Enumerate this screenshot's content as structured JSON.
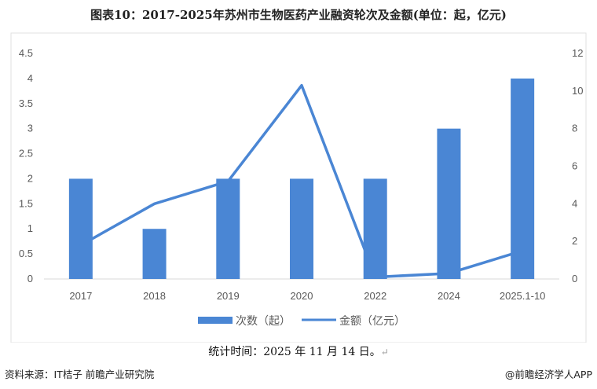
{
  "title": "图表10：2017-2025年苏州市生物医药产业融资轮次及金额(单位：起，亿元)",
  "chart_data": {
    "type": "bar",
    "categories": [
      "2017",
      "2018",
      "2019",
      "2020",
      "2022",
      "2024",
      "2025.1-10"
    ],
    "series": [
      {
        "name": "次数（起）",
        "type": "bar",
        "axis": "left",
        "color": "#4a86d4",
        "values": [
          2,
          1,
          2,
          2,
          2,
          3,
          4
        ]
      },
      {
        "name": "金额（亿元）",
        "type": "line",
        "axis": "right",
        "color": "#4a86d4",
        "values": [
          1.8,
          4.0,
          5.2,
          10.3,
          0.1,
          0.3,
          1.5
        ]
      }
    ],
    "y_left": {
      "min": 0,
      "max": 4.5,
      "ticks": [
        "0",
        "0.5",
        "1",
        "1.5",
        "2",
        "2.5",
        "3",
        "3.5",
        "4",
        "4.5"
      ]
    },
    "y_right": {
      "min": 0,
      "max": 12,
      "ticks": [
        "0",
        "2",
        "4",
        "6",
        "8",
        "10",
        "12"
      ]
    },
    "legend_position": "bottom",
    "grid": false
  },
  "footer": {
    "stat_time": "统计时间：2025 年 11 月 14 日。",
    "stat_time_mark": "↵",
    "source": "资料来源：IT桔子 前瞻产业研究院",
    "copyright": "@前瞻经济学人APP"
  }
}
